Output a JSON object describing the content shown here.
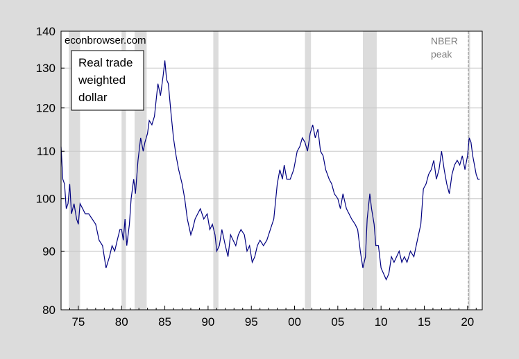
{
  "chart_data": {
    "type": "line",
    "title": "",
    "source_label": "econbrowser.com",
    "legend_text": [
      "Real trade",
      "weighted",
      "dollar"
    ],
    "recession_label": [
      "NBER",
      "peak"
    ],
    "y_scale": "log",
    "ylim": [
      80,
      140
    ],
    "y_ticks": [
      80,
      90,
      100,
      110,
      120,
      130,
      140
    ],
    "y_tick_labels": [
      "80",
      "90",
      "100",
      "110",
      "120",
      "130",
      "140"
    ],
    "xlim": [
      1973.0,
      2021.7
    ],
    "x_ticks": [
      1975,
      1980,
      1985,
      1990,
      1995,
      2000,
      2005,
      2010,
      2015,
      2020
    ],
    "x_tick_labels": [
      "75",
      "80",
      "85",
      "90",
      "95",
      "00",
      "05",
      "10",
      "15",
      "20"
    ],
    "grid": true,
    "colors": {
      "line": "#000080",
      "recession": "#dcdcdc",
      "grid": "#c8c8c8",
      "peak_line": "#888888",
      "nber_text": "#808080"
    },
    "recessions": [
      [
        1973.9,
        1975.2
      ],
      [
        1980.0,
        1980.5
      ],
      [
        1981.5,
        1982.9
      ],
      [
        1990.6,
        1991.2
      ],
      [
        2001.2,
        2001.9
      ],
      [
        2007.9,
        2009.5
      ],
      [
        2020.1,
        2020.3
      ]
    ],
    "peak_marker": 2020.1,
    "series": [
      {
        "x": [
          1973.0,
          1973.2,
          1973.4,
          1973.6,
          1973.8,
          1974.0,
          1974.2,
          1974.5,
          1974.8,
          1975.0,
          1975.2,
          1975.5,
          1975.8,
          1976.2,
          1976.6,
          1977.0,
          1977.4,
          1977.8,
          1978.2,
          1978.6,
          1978.9,
          1979.2,
          1979.5,
          1979.8,
          1980.0,
          1980.2,
          1980.4,
          1980.6,
          1980.9,
          1981.1,
          1981.4,
          1981.6,
          1981.9,
          1982.2,
          1982.5,
          1982.7,
          1983.0,
          1983.2,
          1983.5,
          1983.8,
          1984.0,
          1984.2,
          1984.5,
          1984.8,
          1985.0,
          1985.2,
          1985.4,
          1985.7,
          1986.0,
          1986.3,
          1986.6,
          1987.0,
          1987.3,
          1987.6,
          1988.0,
          1988.2,
          1988.5,
          1988.8,
          1989.1,
          1989.5,
          1989.9,
          1990.2,
          1990.5,
          1990.8,
          1991.0,
          1991.3,
          1991.6,
          1992.0,
          1992.3,
          1992.6,
          1992.9,
          1993.2,
          1993.5,
          1993.8,
          1994.2,
          1994.5,
          1994.8,
          1995.1,
          1995.4,
          1995.7,
          1996.0,
          1996.4,
          1996.8,
          1997.2,
          1997.6,
          1998.0,
          1998.3,
          1998.6,
          1998.8,
          1999.1,
          1999.5,
          1999.9,
          2000.3,
          2000.6,
          2000.9,
          2001.2,
          2001.5,
          2001.8,
          2002.1,
          2002.4,
          2002.7,
          2003.0,
          2003.3,
          2003.6,
          2004.0,
          2004.3,
          2004.6,
          2005.0,
          2005.3,
          2005.6,
          2006.0,
          2006.3,
          2006.6,
          2007.0,
          2007.3,
          2007.6,
          2007.9,
          2008.2,
          2008.4,
          2008.7,
          2008.9,
          2009.2,
          2009.4,
          2009.7,
          2010.0,
          2010.3,
          2010.6,
          2010.9,
          2011.2,
          2011.5,
          2011.8,
          2012.1,
          2012.4,
          2012.7,
          2013.0,
          2013.4,
          2013.8,
          2014.2,
          2014.6,
          2014.9,
          2015.2,
          2015.5,
          2015.8,
          2016.1,
          2016.4,
          2016.7,
          2017.0,
          2017.3,
          2017.6,
          2017.9,
          2018.2,
          2018.5,
          2018.8,
          2019.1,
          2019.4,
          2019.7,
          2020.0,
          2020.2,
          2020.4,
          2020.6,
          2020.8,
          2021.0,
          2021.2,
          2021.4
        ],
        "y": [
          111,
          104,
          103,
          98,
          99,
          103,
          97,
          99,
          96,
          95,
          99,
          98,
          97,
          97,
          96,
          95,
          92,
          91,
          87,
          89,
          91,
          90,
          92,
          94,
          94,
          92,
          96,
          91,
          95,
          100,
          104,
          101,
          108,
          113,
          110,
          112,
          114,
          117,
          116,
          118,
          122,
          126,
          123,
          128,
          132,
          127,
          126,
          119,
          113,
          109,
          106,
          103,
          100,
          96,
          93,
          94,
          96,
          97,
          98,
          96,
          97,
          94,
          95,
          93,
          90,
          91,
          94,
          91,
          89,
          93,
          92,
          91,
          93,
          94,
          93,
          90,
          91,
          88,
          89,
          91,
          92,
          91,
          92,
          94,
          96,
          103,
          106,
          104,
          107,
          104,
          104,
          106,
          110,
          111,
          113,
          112,
          110,
          114,
          116,
          113,
          115,
          110,
          109,
          106,
          104,
          103,
          101,
          100,
          98,
          101,
          98,
          97,
          96,
          95,
          94,
          90,
          87,
          89,
          96,
          101,
          98,
          95,
          91,
          91,
          87,
          86,
          85,
          86,
          89,
          88,
          89,
          90,
          88,
          89,
          88,
          90,
          89,
          92,
          95,
          102,
          103,
          105,
          106,
          108,
          104,
          106,
          110,
          106,
          103,
          101,
          105,
          107,
          108,
          107,
          109,
          106,
          109,
          113,
          112,
          109,
          107,
          105,
          104,
          104
        ],
        "color": "#000080"
      }
    ]
  }
}
